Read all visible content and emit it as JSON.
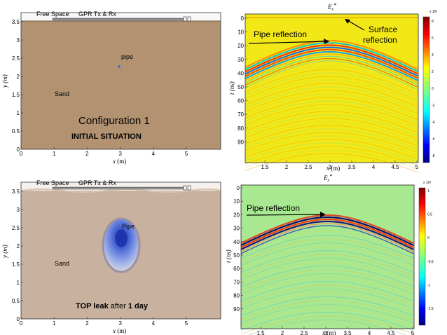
{
  "panels": {
    "config1": {
      "free_space": "Free Space",
      "gpr": "GPR Tx & Rx",
      "pipe": "pipe",
      "sand": "Sand",
      "config": "Configuration 1",
      "situation": "INITIAL SITUATION",
      "xlabel_var": "x",
      "xlabel_unit": " (m)",
      "ylabel": "y (m)",
      "xticks": [
        "0",
        "1",
        "2",
        "3",
        "4",
        "5"
      ],
      "yticks": [
        "0",
        "0.5",
        "1",
        "1.5",
        "2",
        "2.5",
        "3",
        "3.5"
      ],
      "colors": {
        "sand": "#b39272",
        "free_space": "#f8f8f8",
        "pipe": "#4a6fc0"
      }
    },
    "config2": {
      "free_space": "Free Space",
      "gpr": "GPR Tx & Rx",
      "pipe": "Pipe",
      "sand": "Sand",
      "caption_bold1": "TOP leak",
      "caption_normal": " after ",
      "caption_bold2": "1 day",
      "xlabel_var": "x",
      "xlabel_unit": " (m)",
      "ylabel": "y (m)",
      "xticks": [
        "0",
        "1",
        "2",
        "3",
        "4",
        "5"
      ],
      "yticks": [
        "0",
        "0.5",
        "1",
        "1.5",
        "2",
        "2.5",
        "3",
        "3.5"
      ],
      "colors": {
        "sand": "#c8b29f",
        "free_space": "#f5f0eb",
        "leak": "#5f7fe0"
      }
    },
    "radar1": {
      "title": "E",
      "title_sub": "x",
      "title_sup": "*",
      "annot_pipe": "Pipe reflection",
      "annot_surface1": "Surface",
      "annot_surface2": "reflection",
      "xlabel_var": "x",
      "xlabel_unit": " (m)",
      "ylabel": "t (ns)",
      "xticks": [
        "1.5",
        "2",
        "2.5",
        "3",
        "3.5",
        "4",
        "4.5",
        "5"
      ],
      "yticks": [
        "0",
        "10",
        "20",
        "30",
        "40",
        "50",
        "60",
        "70",
        "80",
        "90"
      ],
      "cbar_exp": "x 10³",
      "cbar_ticks": [
        "8",
        "6",
        "4",
        "2",
        "0",
        "-2",
        "-4",
        "-6",
        "-8"
      ],
      "colors": {
        "background": "#f2e818"
      }
    },
    "radar2": {
      "title": "E",
      "title_sub": "x",
      "title_sup": "*",
      "annot_pipe": "Pipe reflection",
      "xlabel_var": "x",
      "xlabel_unit": " (m)",
      "ylabel": "t (ns)",
      "xticks": [
        "1.5",
        "2",
        "2.5",
        "3",
        "3.5",
        "4",
        "4.5",
        "5"
      ],
      "yticks": [
        "0",
        "10",
        "20",
        "30",
        "40",
        "50",
        "60",
        "70",
        "80",
        "90"
      ],
      "cbar_exp": "x 10³",
      "cbar_ticks": [
        "1",
        "0.5",
        "0",
        "-0.5",
        "-1",
        "-1.5"
      ],
      "colors": {
        "background": "#a8e890"
      }
    }
  }
}
